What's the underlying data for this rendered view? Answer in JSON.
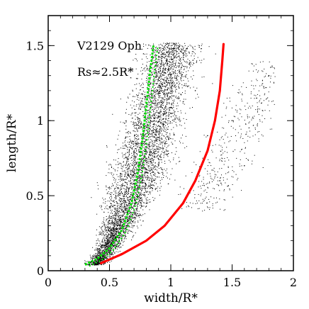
{
  "chart_data": {
    "type": "scatter",
    "xlabel": "width/R*",
    "ylabel": "length/R*",
    "xlim": [
      0,
      2
    ],
    "ylim": [
      0,
      1.7
    ],
    "x_ticks": [
      0,
      0.5,
      1,
      1.5,
      2
    ],
    "x_tick_labels": [
      "0",
      "0.5",
      "1",
      "1.5",
      "2"
    ],
    "y_ticks": [
      0,
      0.5,
      1,
      1.5
    ],
    "y_tick_labels": [
      "0",
      "0.5",
      "1",
      "1.5"
    ],
    "annotations": [
      "V2129 Oph",
      "Rs≈2.5R*"
    ],
    "grid": false,
    "series": [
      {
        "kind": "points",
        "color": "#000000",
        "points": [
          [
            0.3,
            0.05
          ],
          [
            0.35,
            0.06
          ],
          [
            0.4,
            0.08
          ],
          [
            0.45,
            0.1
          ],
          [
            0.5,
            0.12
          ],
          [
            0.55,
            0.15
          ],
          [
            0.6,
            0.2
          ],
          [
            0.65,
            0.25
          ],
          [
            0.7,
            0.3
          ],
          [
            0.75,
            0.37
          ],
          [
            0.8,
            0.45
          ],
          [
            0.85,
            0.55
          ],
          [
            0.9,
            0.7
          ],
          [
            0.95,
            0.85
          ],
          [
            1.0,
            1.05
          ],
          [
            1.05,
            1.25
          ],
          [
            1.1,
            1.45
          ],
          [
            1.2,
            1.2
          ],
          [
            1.3,
            0.9
          ],
          [
            1.5,
            1.0
          ],
          [
            1.7,
            1.15
          ],
          [
            1.8,
            1.3
          ],
          [
            1.6,
            0.7
          ],
          [
            1.4,
            0.6
          ]
        ]
      },
      {
        "kind": "curve",
        "color": "#ff0000",
        "points": [
          [
            0.43,
            0.05
          ],
          [
            0.6,
            0.11
          ],
          [
            0.8,
            0.2
          ],
          [
            0.95,
            0.3
          ],
          [
            1.1,
            0.45
          ],
          [
            1.2,
            0.6
          ],
          [
            1.3,
            0.8
          ],
          [
            1.36,
            1.0
          ],
          [
            1.4,
            1.2
          ],
          [
            1.42,
            1.4
          ],
          [
            1.43,
            1.51
          ]
        ]
      },
      {
        "kind": "dotted-curve",
        "color": "#00e000",
        "points": [
          [
            0.3,
            0.04
          ],
          [
            0.4,
            0.08
          ],
          [
            0.5,
            0.15
          ],
          [
            0.6,
            0.27
          ],
          [
            0.68,
            0.45
          ],
          [
            0.73,
            0.65
          ],
          [
            0.77,
            0.88
          ],
          [
            0.8,
            1.1
          ],
          [
            0.83,
            1.32
          ],
          [
            0.86,
            1.51
          ]
        ]
      }
    ]
  }
}
